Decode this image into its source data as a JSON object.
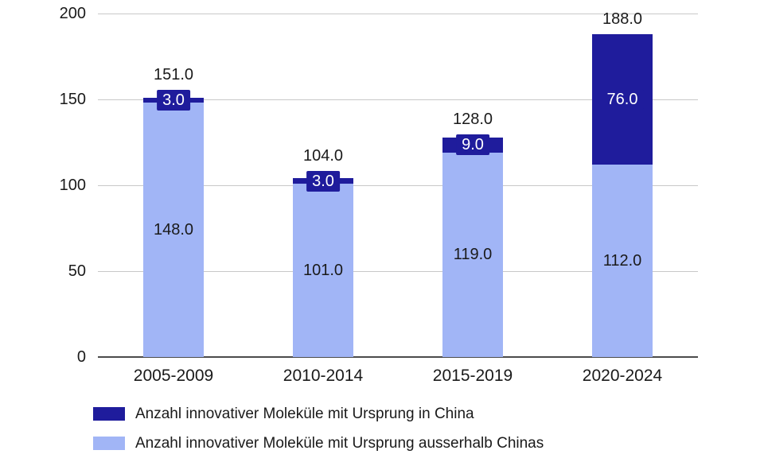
{
  "chart_data": {
    "type": "bar",
    "stacked": true,
    "title": "",
    "categories": [
      "2005-2009",
      "2010-2014",
      "2015-2019",
      "2020-2024"
    ],
    "series": [
      {
        "name": "Anzahl innovativer Moleküle mit Ursprung in China",
        "color": "#1f1c9c",
        "position": "top",
        "values": [
          3,
          3,
          9,
          76
        ],
        "labels": [
          "3.0",
          "3.0",
          "9.0",
          "76.0"
        ],
        "label_text_color": "#ffffff"
      },
      {
        "name": "Anzahl innovativer Moleküle mit Ursprung ausserhalb Chinas",
        "color": "#a1b5f6",
        "position": "bottom",
        "values": [
          148,
          101,
          119,
          112
        ],
        "labels": [
          "148.0",
          "101.0",
          "119.0",
          "112.0"
        ],
        "label_text_color": "#1a1a1a"
      }
    ],
    "totals": {
      "values": [
        151,
        104,
        128,
        188
      ],
      "labels": [
        "151.0",
        "104.0",
        "128.0",
        "188.0"
      ]
    },
    "ylim": [
      0,
      200
    ],
    "yticks": [
      0,
      50,
      100,
      150,
      200
    ],
    "ytick_labels": [
      "0",
      "50",
      "100",
      "150",
      "200"
    ],
    "grid": true,
    "legend_position": "bottom-left",
    "colors": {
      "grid": "#c8c8c8",
      "axis": "#4b4b4b",
      "text": "#1a1a1a",
      "background": "#ffffff"
    }
  }
}
